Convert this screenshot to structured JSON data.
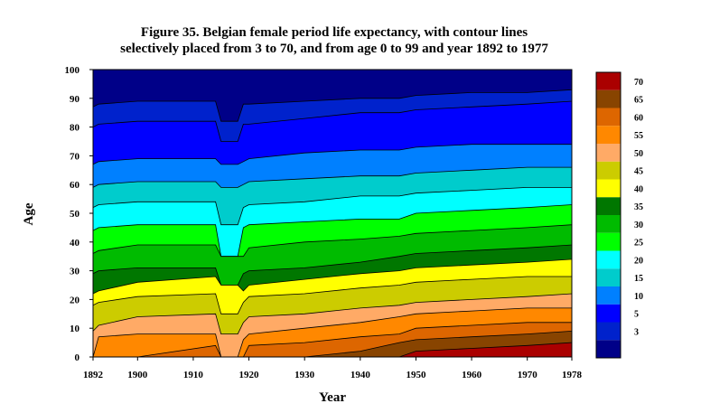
{
  "chart_data": {
    "type": "heatmap",
    "title_line1": "Figure 35. Belgian female period life expectancy, with contour lines",
    "title_line2": "selectively placed from 3 to 70, and from age 0 to 99 and year 1892 to 1977",
    "xlabel": "Year",
    "ylabel": "Age",
    "xlim": [
      1892,
      1978
    ],
    "ylim": [
      0,
      100
    ],
    "xticks": [
      "1892",
      "1900",
      "1910",
      "1920",
      "1930",
      "1940",
      "1950",
      "1960",
      "1970",
      "1978"
    ],
    "yticks": [
      "0",
      "10",
      "20",
      "30",
      "40",
      "50",
      "60",
      "70",
      "80",
      "90",
      "100"
    ],
    "contour_levels": [
      "3",
      "5",
      "10",
      "15",
      "20",
      "25",
      "30",
      "35",
      "40",
      "45",
      "50",
      "55",
      "60",
      "65",
      "70"
    ],
    "colors": [
      "#000088",
      "#0022cc",
      "#0000ff",
      "#0080ff",
      "#00cccc",
      "#00ffff",
      "#00ff00",
      "#00bb00",
      "#007700",
      "#ffff00",
      "#cccc00",
      "#ffaa66",
      "#ff8800",
      "#dd6600",
      "#884400",
      "#aa0000"
    ],
    "band_boundaries_by_year": {
      "years": [
        1892,
        1893,
        1900,
        1914,
        1915,
        1918,
        1919,
        1920,
        1930,
        1940,
        1947,
        1950,
        1960,
        1970,
        1978
      ],
      "e3": [
        87,
        88,
        89,
        89,
        82,
        82,
        88,
        88,
        89,
        90,
        90,
        91,
        92,
        92,
        93
      ],
      "e5": [
        80,
        81,
        82,
        82,
        75,
        75,
        81,
        81,
        83,
        85,
        85,
        86,
        87,
        88,
        89
      ],
      "e10": [
        67,
        68,
        69,
        69,
        67,
        67,
        68,
        69,
        71,
        72,
        72,
        73,
        74,
        74,
        74
      ],
      "e15": [
        59,
        60,
        61,
        61,
        59,
        59,
        60,
        61,
        62,
        63,
        63,
        64,
        65,
        66,
        66
      ],
      "e20": [
        52,
        53,
        54,
        54,
        46,
        46,
        52,
        53,
        54,
        56,
        56,
        57,
        58,
        59,
        59
      ],
      "e25": [
        44,
        45,
        46,
        46,
        35,
        35,
        45,
        46,
        47,
        48,
        48,
        50,
        51,
        52,
        53
      ],
      "e30": [
        36,
        37,
        39,
        39,
        35,
        35,
        35,
        38,
        40,
        41,
        42,
        43,
        44,
        45,
        46
      ],
      "e35": [
        29,
        30,
        31,
        31,
        25,
        25,
        29,
        30,
        31,
        33,
        35,
        36,
        37,
        38,
        39
      ],
      "e40": [
        22,
        23,
        26,
        28,
        25,
        25,
        23,
        25,
        27,
        29,
        30,
        31,
        32,
        33,
        34
      ],
      "e45": [
        18,
        19,
        21,
        22,
        15,
        15,
        19,
        21,
        22,
        24,
        25,
        26,
        27,
        28,
        28
      ],
      "e50": [
        9,
        11,
        14,
        15,
        8,
        8,
        12,
        14,
        15,
        17,
        18,
        19,
        20,
        21,
        22
      ],
      "e55": [
        0,
        7,
        8,
        8,
        0,
        0,
        6,
        8,
        10,
        12,
        14,
        15,
        16,
        17,
        17
      ],
      "e60": [
        0,
        0,
        0,
        4,
        0,
        0,
        0,
        4,
        5,
        7,
        8,
        10,
        11,
        12,
        12
      ],
      "e65": [
        0,
        0,
        0,
        0,
        0,
        0,
        0,
        0,
        0,
        2,
        5,
        6,
        7,
        8,
        9
      ],
      "e70": [
        0,
        0,
        0,
        0,
        0,
        0,
        0,
        0,
        0,
        0,
        0,
        2,
        3,
        4,
        5
      ]
    }
  }
}
